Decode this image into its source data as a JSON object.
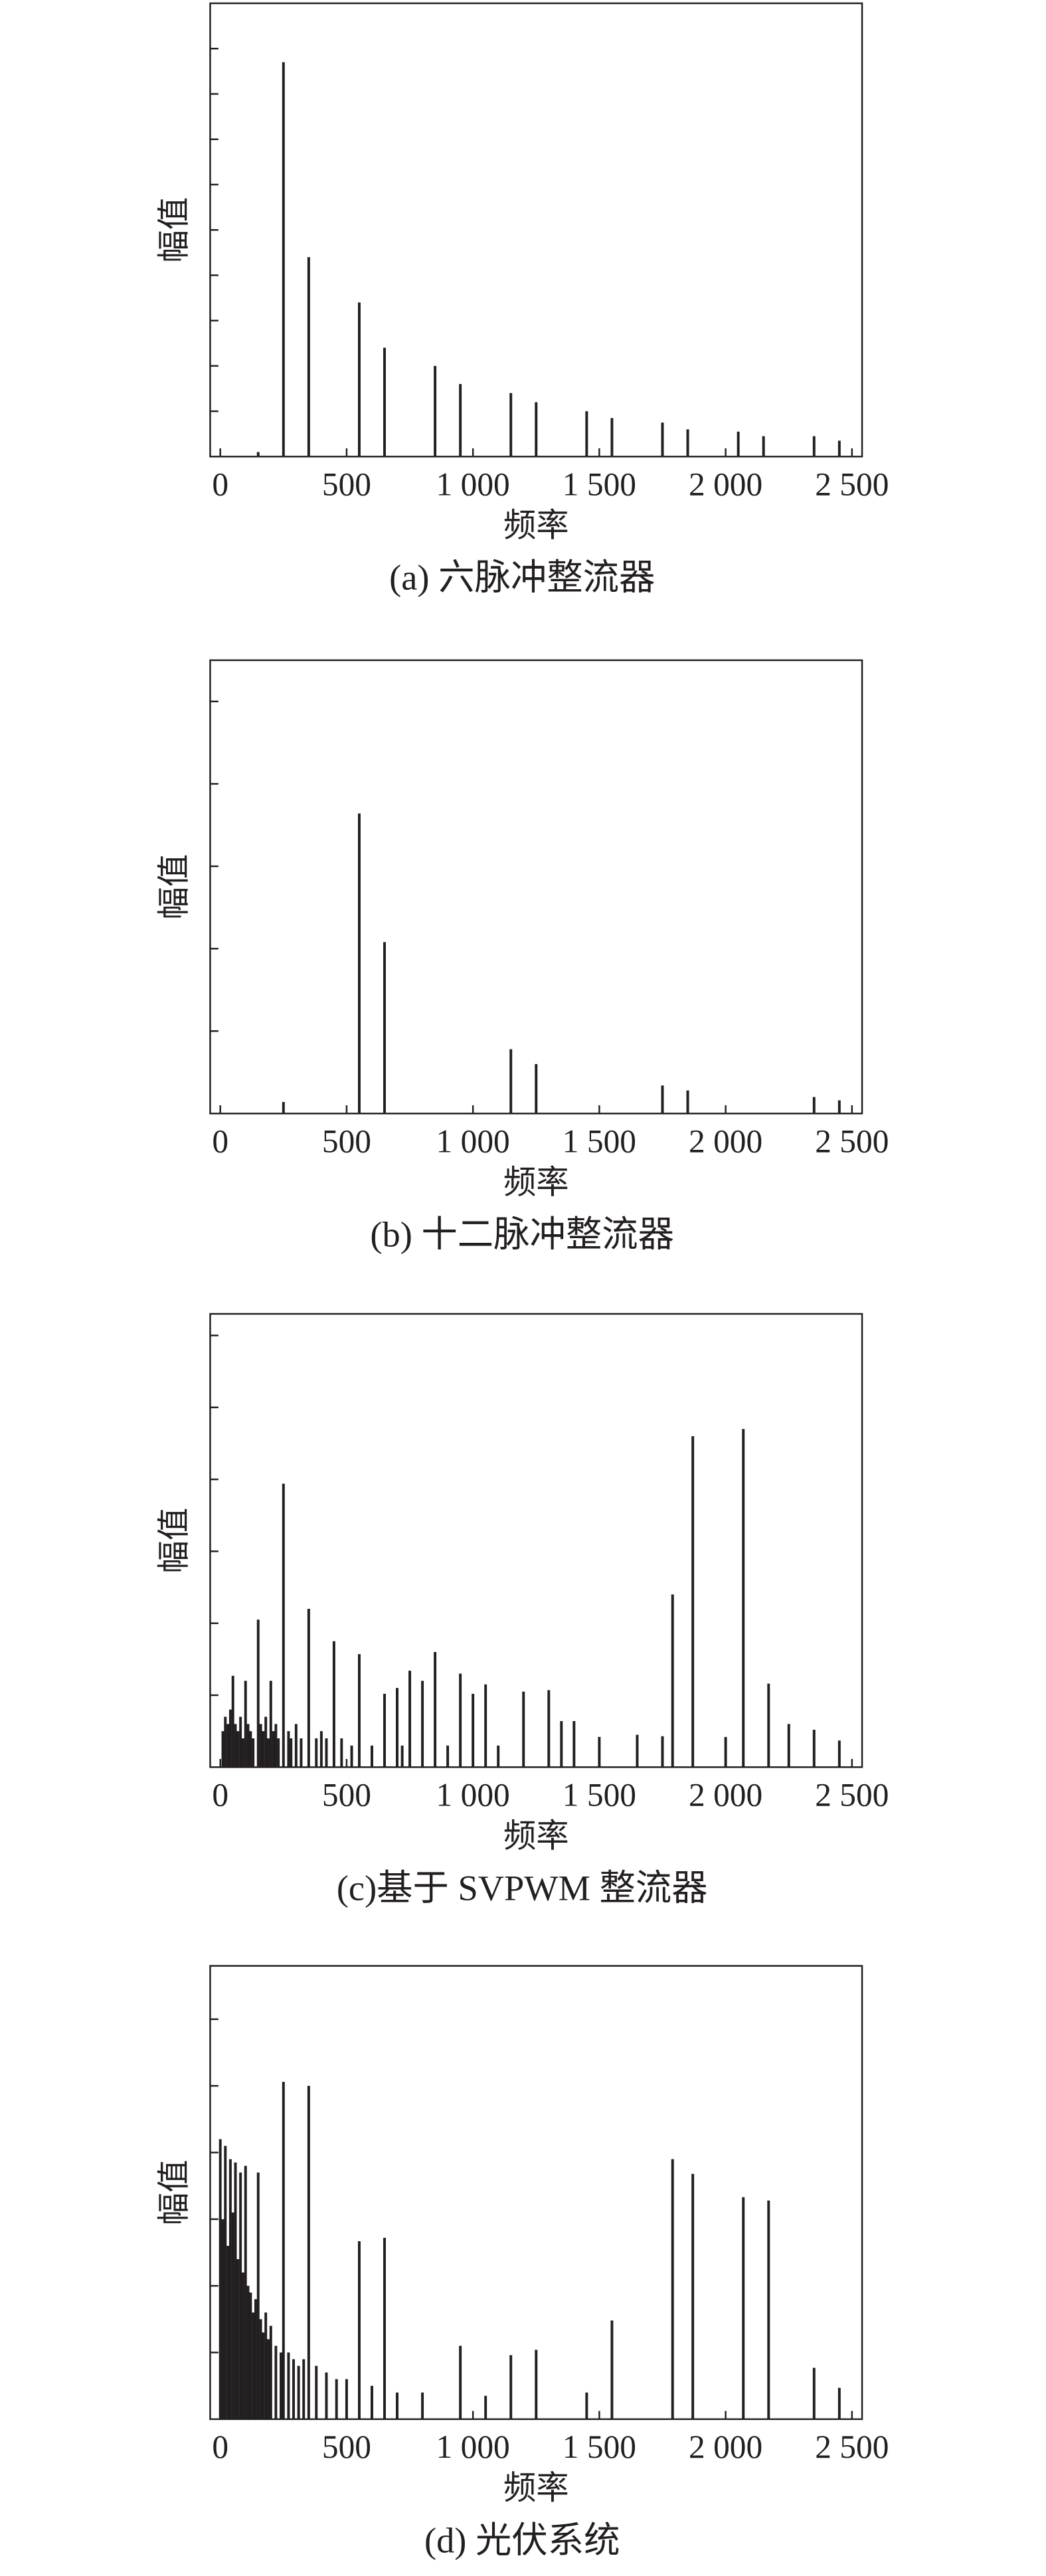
{
  "chart_data": [
    {
      "type": "stem",
      "caption": "(a) 六脉冲整流器",
      "xlabel": "频率",
      "ylabel": "幅值",
      "color": "#231f20",
      "x": [
        150,
        250,
        350,
        550,
        650,
        850,
        950,
        1150,
        1250,
        1450,
        1550,
        1750,
        1850,
        2050,
        2150,
        2350,
        2450
      ],
      "values": [
        0.1,
        8.7,
        4.4,
        3.4,
        2.4,
        2.0,
        1.6,
        1.4,
        1.2,
        1.0,
        0.85,
        0.75,
        0.6,
        0.55,
        0.45,
        0.45,
        0.35
      ],
      "xlim": [
        -40,
        2540
      ],
      "xticks": [
        0,
        500,
        {
          "value": 1000,
          "label": "1 000"
        },
        {
          "value": 1500,
          "label": "1 500"
        },
        {
          "value": 2000,
          "label": "2 000"
        },
        {
          "value": 2500,
          "label": "2 500"
        }
      ],
      "ylim": [
        0,
        10
      ],
      "yticks": [
        1,
        2,
        3,
        4,
        5,
        6,
        7,
        8,
        9
      ]
    },
    {
      "type": "stem",
      "caption": "(b) 十二脉冲整流器",
      "xlabel": "频率",
      "ylabel": "幅值",
      "color": "#231f20",
      "x": [
        250,
        550,
        650,
        1150,
        1250,
        1750,
        1850,
        2350,
        2450
      ],
      "values": [
        0.14,
        3.64,
        2.08,
        0.78,
        0.6,
        0.34,
        0.28,
        0.2,
        0.16
      ],
      "xlim": [
        -40,
        2540
      ],
      "xticks": [
        0,
        500,
        {
          "value": 1000,
          "label": "1 000"
        },
        {
          "value": 1500,
          "label": "1 500"
        },
        {
          "value": 2000,
          "label": "2 000"
        },
        {
          "value": 2500,
          "label": "2 500"
        }
      ],
      "ylim": [
        0,
        5.5
      ],
      "yticks": [
        1,
        2,
        3,
        4,
        5
      ]
    },
    {
      "type": "stem",
      "caption": "(c)基于 SVPWM 整流器",
      "xlabel": "频率",
      "ylabel": "幅值",
      "color": "#231f20",
      "x": [
        10,
        20,
        30,
        40,
        50,
        60,
        70,
        80,
        90,
        100,
        110,
        120,
        130,
        150,
        160,
        170,
        180,
        190,
        200,
        210,
        220,
        230,
        250,
        270,
        280,
        300,
        320,
        350,
        380,
        400,
        420,
        450,
        480,
        520,
        550,
        600,
        650,
        700,
        720,
        750,
        800,
        850,
        900,
        950,
        1000,
        1050,
        1100,
        1200,
        1300,
        1350,
        1400,
        1500,
        1650,
        1750,
        1790,
        1870,
        2000,
        2070,
        2170,
        2250,
        2350,
        2450
      ],
      "values": [
        0.5,
        0.7,
        0.6,
        0.8,
        1.27,
        0.6,
        0.5,
        0.7,
        0.4,
        1.2,
        0.6,
        0.5,
        0.4,
        2.05,
        0.6,
        0.5,
        0.7,
        0.4,
        1.2,
        0.5,
        0.6,
        0.4,
        3.94,
        0.5,
        0.4,
        0.6,
        0.4,
        2.2,
        0.4,
        0.5,
        0.4,
        1.75,
        0.4,
        0.3,
        1.57,
        0.3,
        1.02,
        1.1,
        0.3,
        1.34,
        1.2,
        1.6,
        0.3,
        1.3,
        1.02,
        1.15,
        0.3,
        1.05,
        1.07,
        0.64,
        0.64,
        0.42,
        0.45,
        0.43,
        2.4,
        4.6,
        0.42,
        4.7,
        1.16,
        0.6,
        0.52,
        0.37
      ],
      "xlim": [
        -40,
        2540
      ],
      "xticks": [
        0,
        500,
        {
          "value": 1000,
          "label": "1 000"
        },
        {
          "value": 1500,
          "label": "1 500"
        },
        {
          "value": 2000,
          "label": "2 000"
        },
        {
          "value": 2500,
          "label": "2 500"
        }
      ],
      "ylim": [
        0,
        6.3
      ],
      "yticks": [
        1,
        2,
        3,
        4,
        5,
        6
      ]
    },
    {
      "type": "stem",
      "caption": "(d) 光伏系统",
      "xlabel": "频率",
      "ylabel": "幅值",
      "color": "#231f20",
      "x": [
        0,
        10,
        20,
        30,
        40,
        50,
        60,
        70,
        80,
        90,
        100,
        110,
        120,
        130,
        140,
        150,
        160,
        170,
        180,
        190,
        200,
        220,
        240,
        250,
        270,
        290,
        310,
        330,
        350,
        380,
        420,
        460,
        500,
        550,
        600,
        650,
        700,
        800,
        950,
        1050,
        1150,
        1250,
        1450,
        1550,
        1790,
        1870,
        2070,
        2170,
        2350,
        2450
      ],
      "values": [
        4.2,
        3.0,
        4.1,
        2.6,
        3.9,
        3.1,
        3.85,
        2.4,
        3.7,
        2.2,
        3.8,
        2.0,
        1.9,
        1.6,
        1.8,
        3.7,
        1.5,
        1.3,
        1.6,
        1.2,
        1.4,
        1.1,
        1.0,
        5.06,
        1.0,
        0.9,
        0.8,
        0.9,
        5.0,
        0.8,
        0.7,
        0.6,
        0.6,
        2.67,
        0.5,
        2.72,
        0.4,
        0.4,
        1.1,
        0.35,
        0.96,
        1.04,
        0.4,
        1.48,
        3.9,
        3.68,
        3.33,
        3.28,
        0.77,
        0.47
      ],
      "xlim": [
        -40,
        2540
      ],
      "xticks": [
        0,
        500,
        {
          "value": 1000,
          "label": "1 000"
        },
        {
          "value": 1500,
          "label": "1 500"
        },
        {
          "value": 2000,
          "label": "2 000"
        },
        {
          "value": 2500,
          "label": "2 500"
        }
      ],
      "ylim": [
        0,
        6.8
      ],
      "yticks": [
        1,
        2,
        3,
        4,
        5,
        6
      ]
    }
  ]
}
